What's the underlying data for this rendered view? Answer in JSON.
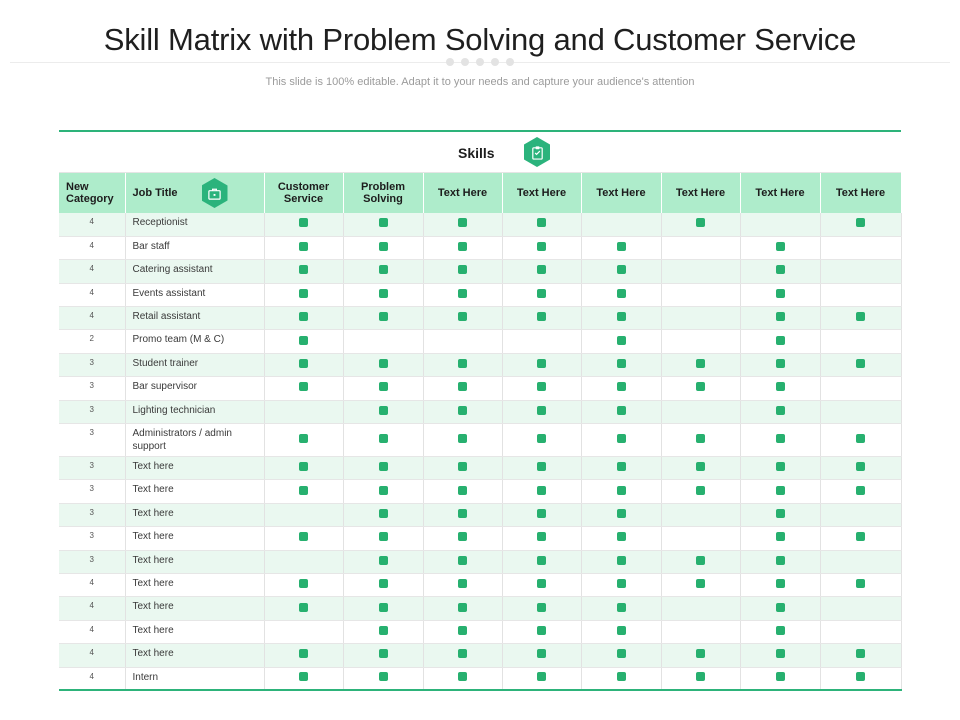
{
  "title": "Skill Matrix with Problem Solving and Customer Service",
  "subtitle": "This slide is 100% editable. Adapt it to your needs and capture your audience's attention",
  "skills_heading": "Skills",
  "colors": {
    "accent": "#2bb37c",
    "header_fill": "#aeeccb",
    "stripe": "#eaf8f0",
    "mark": "#27b06f"
  },
  "icons": {
    "skills": "clipboard-icon",
    "job_title": "briefcase-icon"
  },
  "columns": {
    "category": "New Category",
    "job_title": "Job Title",
    "skills": [
      "Customer Service",
      "Problem Solving",
      "Text Here",
      "Text Here",
      "Text Here",
      "Text Here",
      "Text Here",
      "Text Here"
    ]
  },
  "rows": [
    {
      "category": "4",
      "job": "Receptionist",
      "marks": [
        1,
        1,
        1,
        1,
        0,
        1,
        0,
        1
      ]
    },
    {
      "category": "4",
      "job": "Bar staff",
      "marks": [
        1,
        1,
        1,
        1,
        1,
        0,
        1,
        0
      ]
    },
    {
      "category": "4",
      "job": "Catering assistant",
      "marks": [
        1,
        1,
        1,
        1,
        1,
        0,
        1,
        0
      ]
    },
    {
      "category": "4",
      "job": "Events assistant",
      "marks": [
        1,
        1,
        1,
        1,
        1,
        0,
        1,
        0
      ]
    },
    {
      "category": "4",
      "job": "Retail assistant",
      "marks": [
        1,
        1,
        1,
        1,
        1,
        0,
        1,
        1
      ]
    },
    {
      "category": "2",
      "job": "Promo team (M & C)",
      "marks": [
        1,
        0,
        0,
        0,
        1,
        0,
        1,
        0
      ]
    },
    {
      "category": "3",
      "job": "Student trainer",
      "marks": [
        1,
        1,
        1,
        1,
        1,
        1,
        1,
        1
      ]
    },
    {
      "category": "3",
      "job": "Bar supervisor",
      "marks": [
        1,
        1,
        1,
        1,
        1,
        1,
        1,
        0
      ]
    },
    {
      "category": "3",
      "job": "Lighting technician",
      "marks": [
        0,
        1,
        1,
        1,
        1,
        0,
        1,
        0
      ]
    },
    {
      "category": "3",
      "job": "Administrators / admin support",
      "marks": [
        1,
        1,
        1,
        1,
        1,
        1,
        1,
        1
      ]
    },
    {
      "category": "3",
      "job": "Text here",
      "marks": [
        1,
        1,
        1,
        1,
        1,
        1,
        1,
        1
      ]
    },
    {
      "category": "3",
      "job": "Text here",
      "marks": [
        1,
        1,
        1,
        1,
        1,
        1,
        1,
        1
      ]
    },
    {
      "category": "3",
      "job": "Text here",
      "marks": [
        0,
        1,
        1,
        1,
        1,
        0,
        1,
        0
      ]
    },
    {
      "category": "3",
      "job": "Text here",
      "marks": [
        1,
        1,
        1,
        1,
        1,
        0,
        1,
        1
      ]
    },
    {
      "category": "3",
      "job": "Text here",
      "marks": [
        0,
        1,
        1,
        1,
        1,
        1,
        1,
        0
      ]
    },
    {
      "category": "4",
      "job": "Text here",
      "marks": [
        1,
        1,
        1,
        1,
        1,
        1,
        1,
        1
      ]
    },
    {
      "category": "4",
      "job": "Text here",
      "marks": [
        1,
        1,
        1,
        1,
        1,
        0,
        1,
        0
      ]
    },
    {
      "category": "4",
      "job": "Text here",
      "marks": [
        0,
        1,
        1,
        1,
        1,
        0,
        1,
        0
      ]
    },
    {
      "category": "4",
      "job": "Text here",
      "marks": [
        1,
        1,
        1,
        1,
        1,
        1,
        1,
        1
      ]
    },
    {
      "category": "4",
      "job": "Intern",
      "marks": [
        1,
        1,
        1,
        1,
        1,
        1,
        1,
        1
      ]
    }
  ]
}
